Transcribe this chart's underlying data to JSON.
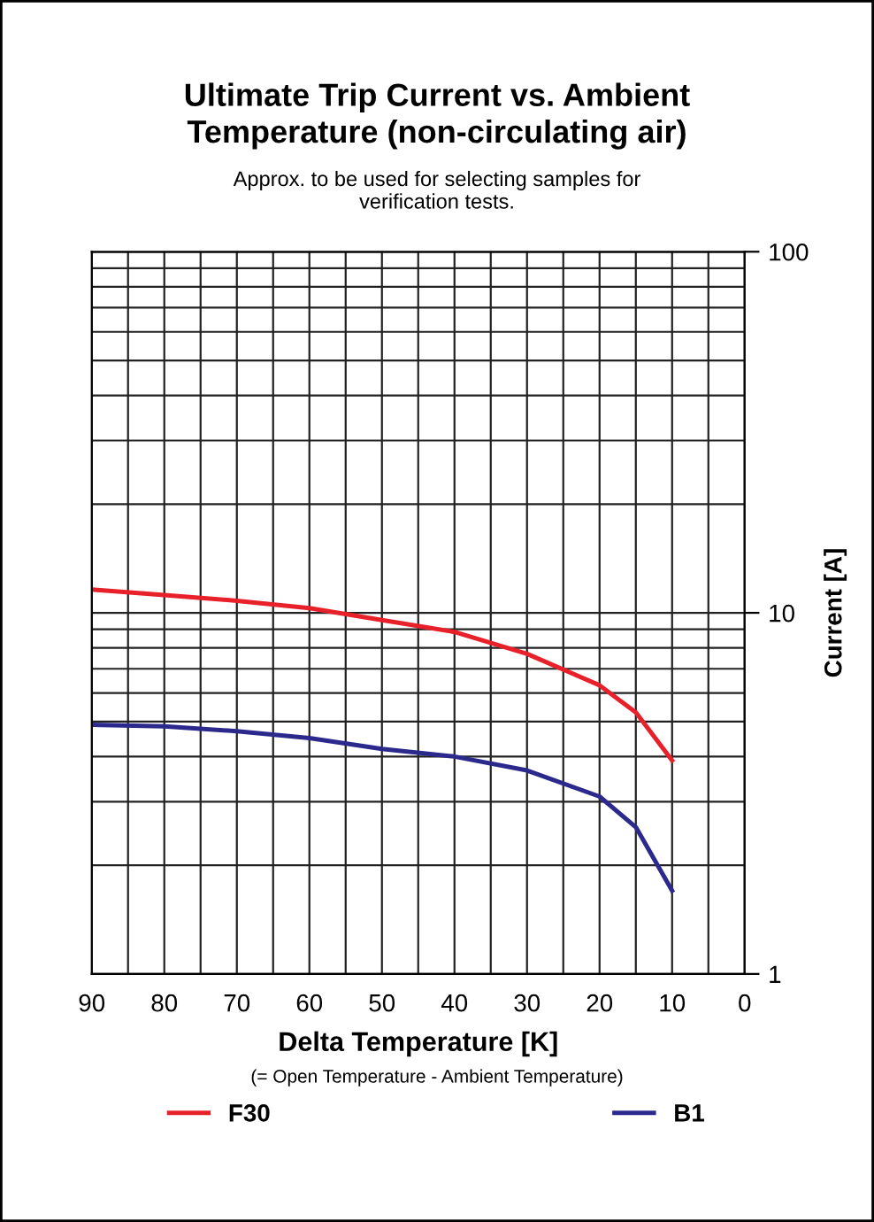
{
  "chart_data": {
    "type": "line",
    "title": "Ultimate Trip Current vs. Ambient\nTemperature (non-circulating air)",
    "subtitle": "Approx. to be used for selecting samples for\nverification tests.",
    "xlabel": "Delta Temperature [K]",
    "annotations": [
      "(= Open Temperature - Ambient Temperature)"
    ],
    "ylabel": "Current [A]",
    "x": [
      90,
      80,
      70,
      60,
      50,
      40,
      30,
      20,
      15,
      10
    ],
    "series": [
      {
        "name": "F30",
        "color": "#e8202a",
        "values": [
          11.6,
          11.2,
          10.8,
          10.3,
          9.55,
          8.85,
          7.7,
          6.3,
          5.3,
          3.9
        ]
      },
      {
        "name": "B1",
        "color": "#2b2a8c",
        "values": [
          4.9,
          4.85,
          4.7,
          4.5,
          4.2,
          4.0,
          3.66,
          3.1,
          2.55,
          1.7
        ]
      }
    ],
    "xlim": [
      90,
      0
    ],
    "xticks": [
      90,
      80,
      70,
      60,
      50,
      40,
      30,
      20,
      10,
      0
    ],
    "ylim": [
      1,
      100
    ],
    "yticks": [
      1,
      10,
      100
    ],
    "log": "y",
    "grid": true,
    "legend": "bottom",
    "marker": "none",
    "line_style": "solid"
  }
}
